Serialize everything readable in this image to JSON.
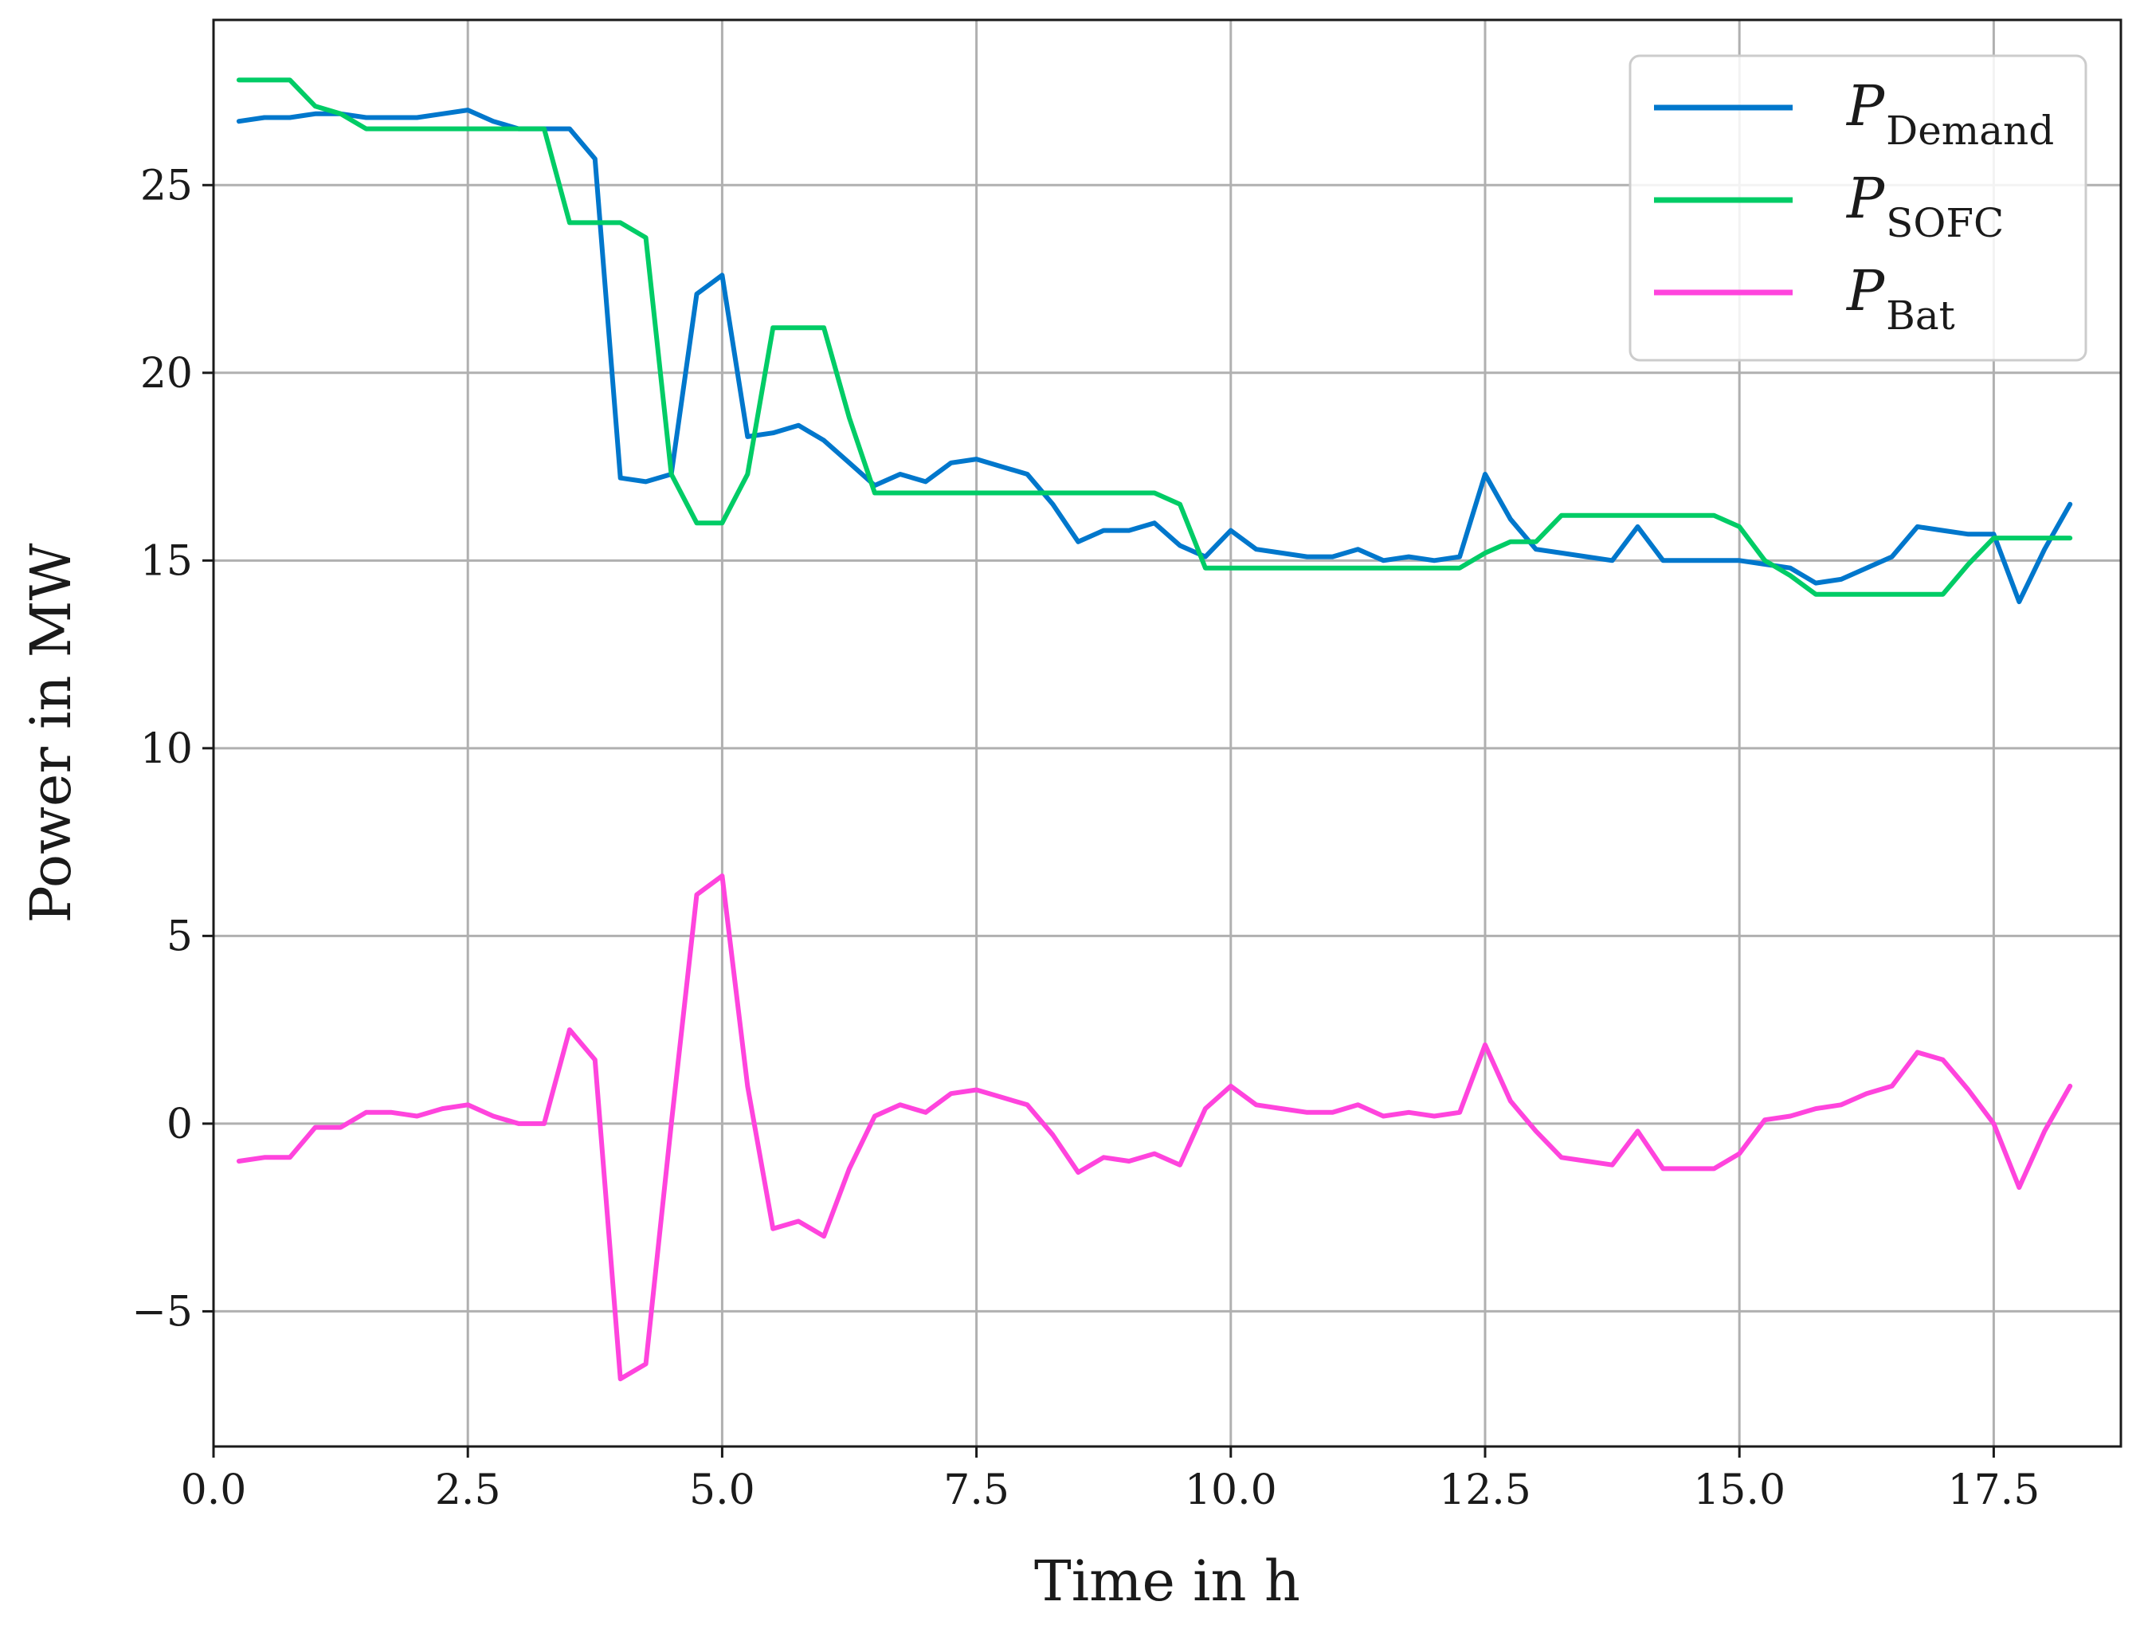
{
  "chart_data": {
    "type": "line",
    "title": "",
    "xlabel": "Time in h",
    "ylabel": "Power in MW",
    "xlim": [
      0,
      18.75
    ],
    "ylim": [
      -8.6,
      29.4
    ],
    "x_ticks": [
      0.0,
      2.5,
      5.0,
      7.5,
      10.0,
      12.5,
      15.0,
      17.5
    ],
    "x_tick_labels": [
      "0.0",
      "2.5",
      "5.0",
      "7.5",
      "10.0",
      "12.5",
      "15.0",
      "17.5"
    ],
    "y_ticks": [
      -5,
      0,
      5,
      10,
      15,
      20,
      25
    ],
    "y_tick_labels": [
      "−5",
      "0",
      "5",
      "10",
      "15",
      "20",
      "25"
    ],
    "grid": true,
    "legend_position": "top-right",
    "series": [
      {
        "name": "P_Demand",
        "legend_main": "P",
        "legend_sub": "Demand",
        "color": "#0077cc",
        "x": [
          0.25,
          0.5,
          0.75,
          1.0,
          1.25,
          1.5,
          1.75,
          2.0,
          2.25,
          2.5,
          2.75,
          3.0,
          3.25,
          3.5,
          3.75,
          4.0,
          4.25,
          4.5,
          4.75,
          5.0,
          5.25,
          5.5,
          5.75,
          6.0,
          6.25,
          6.5,
          6.75,
          7.0,
          7.25,
          7.5,
          7.75,
          8.0,
          8.25,
          8.5,
          8.75,
          9.0,
          9.25,
          9.5,
          9.75,
          10.0,
          10.25,
          10.5,
          10.75,
          11.0,
          11.25,
          11.5,
          11.75,
          12.0,
          12.25,
          12.5,
          12.75,
          13.0,
          13.25,
          13.5,
          13.75,
          14.0,
          14.25,
          14.5,
          14.75,
          15.0,
          15.25,
          15.5,
          15.75,
          16.0,
          16.25,
          16.5,
          16.75,
          17.0,
          17.25,
          17.5,
          17.75,
          18.0,
          18.25
        ],
        "y": [
          26.7,
          26.8,
          26.8,
          26.9,
          26.9,
          26.8,
          26.8,
          26.8,
          26.9,
          27.0,
          26.7,
          26.5,
          26.5,
          26.5,
          25.7,
          17.2,
          17.1,
          17.3,
          22.1,
          22.6,
          18.3,
          18.4,
          18.6,
          18.2,
          17.6,
          17.0,
          17.3,
          17.1,
          17.6,
          17.7,
          17.5,
          17.3,
          16.5,
          15.5,
          15.8,
          15.8,
          16.0,
          15.4,
          15.1,
          15.8,
          15.3,
          15.2,
          15.1,
          15.1,
          15.3,
          15.0,
          15.1,
          15.0,
          15.1,
          17.3,
          16.1,
          15.3,
          15.2,
          15.1,
          15.0,
          15.9,
          15.0,
          15.0,
          15.0,
          15.0,
          14.9,
          14.8,
          14.4,
          14.5,
          14.8,
          15.1,
          15.9,
          15.8,
          15.7,
          15.7,
          13.9,
          15.3,
          16.5
        ]
      },
      {
        "name": "P_SOFC",
        "legend_main": "P",
        "legend_sub": "SOFC",
        "color": "#00cc66",
        "x": [
          0.25,
          0.5,
          0.75,
          1.0,
          1.25,
          1.5,
          1.75,
          2.0,
          2.25,
          2.5,
          2.75,
          3.0,
          3.25,
          3.5,
          3.75,
          4.0,
          4.25,
          4.5,
          4.75,
          5.0,
          5.25,
          5.5,
          5.75,
          6.0,
          6.25,
          6.5,
          6.75,
          7.0,
          7.25,
          7.5,
          7.75,
          8.0,
          8.25,
          8.5,
          8.75,
          9.0,
          9.25,
          9.5,
          9.75,
          10.0,
          10.25,
          10.5,
          10.75,
          11.0,
          11.25,
          11.5,
          11.75,
          12.0,
          12.25,
          12.5,
          12.75,
          13.0,
          13.25,
          13.5,
          13.75,
          14.0,
          14.25,
          14.5,
          14.75,
          15.0,
          15.25,
          15.5,
          15.75,
          16.0,
          16.25,
          16.5,
          16.75,
          17.0,
          17.25,
          17.5,
          17.75,
          18.0,
          18.25
        ],
        "y": [
          27.8,
          27.8,
          27.8,
          27.1,
          26.9,
          26.5,
          26.5,
          26.5,
          26.5,
          26.5,
          26.5,
          26.5,
          26.5,
          24.0,
          24.0,
          24.0,
          23.6,
          17.3,
          16.0,
          16.0,
          17.3,
          21.2,
          21.2,
          21.2,
          18.8,
          16.8,
          16.8,
          16.8,
          16.8,
          16.8,
          16.8,
          16.8,
          16.8,
          16.8,
          16.8,
          16.8,
          16.8,
          16.5,
          14.8,
          14.8,
          14.8,
          14.8,
          14.8,
          14.8,
          14.8,
          14.8,
          14.8,
          14.8,
          14.8,
          15.2,
          15.5,
          15.5,
          16.2,
          16.2,
          16.2,
          16.2,
          16.2,
          16.2,
          16.2,
          15.9,
          15.0,
          14.6,
          14.1,
          14.1,
          14.1,
          14.1,
          14.1,
          14.1,
          14.9,
          15.6,
          15.6,
          15.6,
          15.6
        ]
      },
      {
        "name": "P_Bat",
        "legend_main": "P",
        "legend_sub": "Bat",
        "color": "#ff44dd",
        "x": [
          0.25,
          0.5,
          0.75,
          1.0,
          1.25,
          1.5,
          1.75,
          2.0,
          2.25,
          2.5,
          2.75,
          3.0,
          3.25,
          3.5,
          3.75,
          4.0,
          4.25,
          4.5,
          4.75,
          5.0,
          5.25,
          5.5,
          5.75,
          6.0,
          6.25,
          6.5,
          6.75,
          7.0,
          7.25,
          7.5,
          7.75,
          8.0,
          8.25,
          8.5,
          8.75,
          9.0,
          9.25,
          9.5,
          9.75,
          10.0,
          10.25,
          10.5,
          10.75,
          11.0,
          11.25,
          11.5,
          11.75,
          12.0,
          12.25,
          12.5,
          12.75,
          13.0,
          13.25,
          13.5,
          13.75,
          14.0,
          14.25,
          14.5,
          14.75,
          15.0,
          15.25,
          15.5,
          15.75,
          16.0,
          16.25,
          16.5,
          16.75,
          17.0,
          17.25,
          17.5,
          17.75,
          18.0,
          18.25
        ],
        "y": [
          -1.0,
          -0.9,
          -0.9,
          -0.1,
          -0.1,
          0.3,
          0.3,
          0.2,
          0.4,
          0.5,
          0.2,
          0.0,
          0.0,
          2.5,
          1.7,
          -6.8,
          -6.4,
          0.0,
          6.1,
          6.6,
          1.0,
          -2.8,
          -2.6,
          -3.0,
          -1.2,
          0.2,
          0.5,
          0.3,
          0.8,
          0.9,
          0.7,
          0.5,
          -0.3,
          -1.3,
          -0.9,
          -1.0,
          -0.8,
          -1.1,
          0.4,
          1.0,
          0.5,
          0.4,
          0.3,
          0.3,
          0.5,
          0.2,
          0.3,
          0.2,
          0.3,
          2.1,
          0.6,
          -0.2,
          -0.9,
          -1.0,
          -1.1,
          -0.2,
          -1.2,
          -1.2,
          -1.2,
          -0.8,
          0.1,
          0.2,
          0.4,
          0.5,
          0.8,
          1.0,
          1.9,
          1.7,
          0.9,
          0.0,
          -1.7,
          -0.2,
          1.0
        ]
      }
    ]
  }
}
